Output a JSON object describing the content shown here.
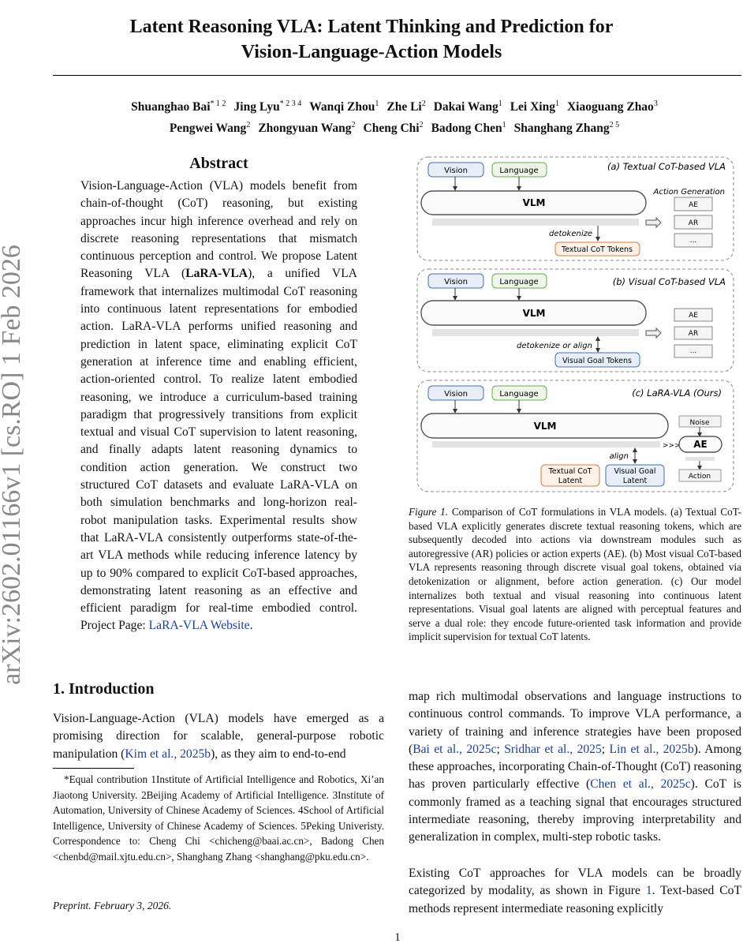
{
  "title_line1": "Latent Reasoning VLA: Latent Thinking and Prediction for",
  "title_line2": "Vision-Language-Action Models",
  "authors": [
    {
      "name": "Shuanghao Bai",
      "aff": "* 1 2"
    },
    {
      "name": "Jing Lyu",
      "aff": "* 2 3 4"
    },
    {
      "name": "Wanqi Zhou",
      "aff": "1"
    },
    {
      "name": "Zhe Li",
      "aff": "2"
    },
    {
      "name": "Dakai Wang",
      "aff": "1"
    },
    {
      "name": "Lei Xing",
      "aff": "1"
    },
    {
      "name": "Xiaoguang Zhao",
      "aff": "3"
    },
    {
      "name": "Pengwei Wang",
      "aff": "2"
    },
    {
      "name": "Zhongyuan Wang",
      "aff": "2"
    },
    {
      "name": "Cheng Chi",
      "aff": "2"
    },
    {
      "name": "Badong Chen",
      "aff": "1"
    },
    {
      "name": "Shanghang Zhang",
      "aff": "2 5"
    }
  ],
  "arxiv_id": "arXiv:2602.01166v1  [cs.RO]  1 Feb 2026",
  "abstract": {
    "heading": "Abstract",
    "text_before_bold": "Vision-Language-Action (VLA) models benefit from chain-of-thought (CoT) reasoning, but existing approaches incur high inference overhead and rely on discrete reasoning representations that mismatch continuous perception and control. We propose Latent Reasoning VLA (",
    "bold": "LaRA-VLA",
    "text_after_bold": "), a unified VLA framework that internalizes multimodal CoT reasoning into continuous latent representations for embodied action.  LaRA-VLA performs unified reasoning and prediction in latent space, eliminating explicit CoT generation at inference time and enabling efficient, action-oriented control. To realize latent embodied reasoning, we introduce a curriculum-based training paradigm that progressively transitions from explicit textual and visual CoT supervision to latent reasoning, and finally adapts latent reasoning dynamics to condition action generation. We construct two structured CoT datasets and evaluate LaRA-VLA on both simulation benchmarks and long-horizon real-robot manipulation tasks. Experimental results show that LaRA-VLA consistently outperforms state-of-the-art VLA methods while reducing inference latency by up to 90% compared to explicit CoT-based approaches, demonstrating latent reasoning as an effective and efficient paradigm for real-time embodied control. Project Page: ",
    "link": "LaRA-VLA Website",
    "end": "."
  },
  "figure": {
    "panel_a": {
      "title": "(a) Textual CoT-based VLA",
      "vision": "Vision",
      "language": "Language",
      "vlm": "VLM",
      "action_generation": "Action Generation",
      "ae": "AE",
      "ar": "AR",
      "more": "...",
      "op": "detokenize",
      "tokens": "Textual CoT Tokens"
    },
    "panel_b": {
      "title": "(b) Visual CoT-based VLA",
      "vision": "Vision",
      "language": "Language",
      "vlm": "VLM",
      "ae": "AE",
      "ar": "AR",
      "more": "...",
      "op": "detokenize or align",
      "tokens": "Visual Goal Tokens"
    },
    "panel_c": {
      "title": "(c) LaRA-VLA (Ours)",
      "vision": "Vision",
      "language": "Language",
      "vlm": "VLM",
      "noise": "Noise",
      "ae": "AE",
      "action": "Action",
      "chevrons": ">>>",
      "op": "align",
      "textual_l1": "Textual CoT",
      "textual_l2": "Latent",
      "visual_l1": "Visual Goal",
      "visual_l2": "Latent"
    },
    "colors": {
      "vision": "#4a6fb5",
      "language": "#6aa84f",
      "textual": "#e07b39"
    },
    "caption_label": "Figure 1.",
    "caption": " Comparison of CoT formulations in VLA models. (a) Textual CoT-based VLA explicitly generates discrete textual reasoning tokens, which are subsequently decoded into actions via downstream modules such as autoregressive (AR) policies or action experts (AE). (b) Most visual CoT-based VLA represents reasoning through discrete visual goal tokens, obtained via detokenization or alignment, before action generation. (c) Our model internalizes both textual and visual reasoning into continuous latent representations. Visual goal latents are aligned with perceptual features and serve a dual role: they encode future-oriented task information and provide implicit supervision for textual CoT latents."
  },
  "intro": {
    "heading": "1. Introduction",
    "p1_a": "Vision-Language-Action (VLA) models have emerged as a promising direction for scalable, general-purpose robotic manipulation (",
    "p1_cite": "Kim et al., 2025b",
    "p1_b": "), as they aim to end-to-end",
    "r1_a": "map rich multimodal observations and language instructions to continuous control commands. To improve VLA performance, a variety of training and inference strategies have been proposed (",
    "r1_c1": "Bai et al., 2025c",
    "r1_s1": "; ",
    "r1_c2": "Sridhar et al., 2025",
    "r1_s2": "; ",
    "r1_c3": "Lin et al., 2025b",
    "r1_b": "). Among these approaches, incorporating Chain-of-Thought (CoT) reasoning has proven particularly effective (",
    "r1_c4": "Chen et al., 2025c",
    "r1_c": "). CoT is commonly framed as a teaching signal that encourages structured intermediate reasoning, thereby improving interpretability and generalization in complex, multi-step robotic tasks.",
    "r2_a": "Existing CoT approaches for VLA models can be broadly categorized by modality, as shown in Figure ",
    "r2_ref": "1",
    "r2_b": ". Text-based CoT methods represent intermediate reasoning explicitly"
  },
  "footnote": "*Equal contribution  1Institute of Artificial Intelligence and Robotics, Xi’an Jiaotong University. 2Beijing Academy of Artificial Intelligence. 3Institute of Automation, University of Chinese Academy of Sciences. 4School of Artificial Intelligence, University of Chinese Academy of Sciences. 5Peking Univeristy. Correspondence to: Cheng Chi <chicheng@baai.ac.cn>, Badong Chen <chenbd@mail.xjtu.edu.cn>, Shanghang Zhang <shanghang@pku.edu.cn>.",
  "preprint": "Preprint. February 3, 2026.",
  "page_number": "1"
}
